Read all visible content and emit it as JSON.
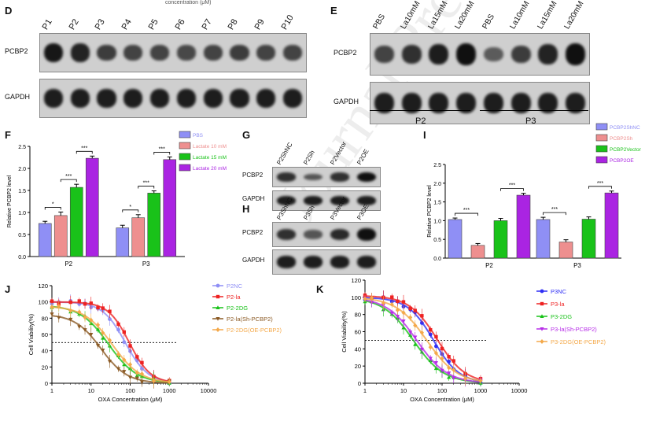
{
  "header_fragment": "concentration (μM)",
  "watermark": "Journal Pre-proof",
  "panels": {
    "D": {
      "letter": "D",
      "lanes": [
        "P1",
        "P2",
        "P3",
        "P4",
        "P5",
        "P6",
        "P7",
        "P8",
        "P9",
        "P10"
      ],
      "rows": [
        "PCBP2",
        "GAPDH"
      ],
      "pcbp2_intensity": [
        0.9,
        0.8,
        0.6,
        0.55,
        0.55,
        0.5,
        0.55,
        0.6,
        0.55,
        0.55
      ]
    },
    "E": {
      "letter": "E",
      "lanes": [
        "PBS",
        "La10mM",
        "La15mM",
        "La20mM",
        "PBS",
        "La10mM",
        "La15mM",
        "La20mM"
      ],
      "rows": [
        "PCBP2",
        "GAPDH"
      ],
      "groups": [
        "P2",
        "P3"
      ],
      "pcbp2_intensity": [
        0.55,
        0.7,
        0.85,
        0.95,
        0.35,
        0.6,
        0.8,
        0.95
      ]
    },
    "G": {
      "letter": "G",
      "lanes": [
        "P2ShNC",
        "P2Sh",
        "P2Vector",
        "P2OE"
      ],
      "rows": [
        "PCBP2",
        "GAPDH"
      ],
      "pcbp2_intensity": [
        0.7,
        0.4,
        0.7,
        0.95
      ]
    },
    "H": {
      "letter": "H",
      "lanes": [
        "P3ShNC",
        "P3Sh",
        "P3Vector",
        "P3OE"
      ],
      "rows": [
        "PCBP2",
        "GAPDH"
      ],
      "pcbp2_intensity": [
        0.7,
        0.4,
        0.75,
        0.95
      ]
    }
  },
  "colors": {
    "blue": "#8f8ff5",
    "pink": "#ee8f8f",
    "green": "#19c219",
    "purple": "#aa24e2",
    "brown": "#8b5a24",
    "orange": "#f4a94a",
    "netblue": "#2f2ff5",
    "red": "#ee2222",
    "magenta": "#b72de8"
  },
  "chart_data": [
    {
      "id": "F",
      "letter": "F",
      "type": "bar",
      "ylabel": "Relative PCBP2 level",
      "ylim": [
        0,
        2.5
      ],
      "yticks": [
        "0.0",
        "0.5",
        "1.0",
        "1.5",
        "2.0",
        "2.5"
      ],
      "categories": [
        "P2",
        "P3"
      ],
      "series": [
        {
          "name": "PBS",
          "values": [
            0.75,
            0.65
          ],
          "errors": [
            0.05,
            0.06
          ]
        },
        {
          "name": "Lactate 10 mM",
          "values": [
            0.93,
            0.88
          ],
          "errors": [
            0.08,
            0.07
          ]
        },
        {
          "name": "Lactate 15 mM",
          "values": [
            1.57,
            1.44
          ],
          "errors": [
            0.07,
            0.05
          ]
        },
        {
          "name": "Lactate 20 mM",
          "values": [
            2.23,
            2.2
          ],
          "errors": [
            0.05,
            0.06
          ]
        }
      ],
      "annotations": [
        "*",
        "***",
        "***",
        "*",
        "***",
        "***"
      ]
    },
    {
      "id": "I",
      "letter": "I",
      "type": "bar",
      "ylabel": "Relative PCBP2 level",
      "ylim": [
        0,
        2.5
      ],
      "yticks": [
        "0.0",
        "0.5",
        "1.0",
        "1.5",
        "2.0",
        "2.5"
      ],
      "categories": [
        "P2",
        "P3"
      ],
      "series": [
        {
          "name": "PCBP2ShNC",
          "values": [
            1.03,
            1.03
          ],
          "errors": [
            0.04,
            0.06
          ]
        },
        {
          "name": "PCBP2Sh",
          "values": [
            0.34,
            0.43
          ],
          "errors": [
            0.05,
            0.06
          ]
        },
        {
          "name": "PCBP2Vector",
          "values": [
            1.0,
            1.04
          ],
          "errors": [
            0.06,
            0.06
          ]
        },
        {
          "name": "PCBP2OE",
          "values": [
            1.68,
            1.74
          ],
          "errors": [
            0.05,
            0.05
          ]
        }
      ],
      "annotations": [
        "***",
        "***",
        "***",
        "***"
      ]
    },
    {
      "id": "J",
      "letter": "J",
      "type": "line",
      "xlabel": "OXA Concentration (μM)",
      "ylabel": "Cell Viability(%)",
      "xscale": "log",
      "xlim": [
        1,
        10000
      ],
      "ylim": [
        0,
        120
      ],
      "xticks": [
        "1",
        "10",
        "100",
        "1000",
        "10000"
      ],
      "yticks": [
        "0",
        "20",
        "40",
        "60",
        "80",
        "100",
        "120"
      ],
      "reference_line": 50,
      "series": [
        {
          "name": "P2NC",
          "ic50": 75,
          "hill": 1.5,
          "top": 100
        },
        {
          "name": "P2-la",
          "ic50": 95,
          "hill": 1.6,
          "top": 100
        },
        {
          "name": "P2-2DG",
          "ic50": 28,
          "hill": 1.2,
          "top": 96
        },
        {
          "name": "P2-la(Sh-PCBP2)",
          "ic50": 18,
          "hill": 1.3,
          "top": 85
        },
        {
          "name": "P2-2DG(OE-PCBP2)",
          "ic50": 35,
          "hill": 1.2,
          "top": 95
        }
      ]
    },
    {
      "id": "K",
      "letter": "K",
      "type": "line",
      "xlabel": "OXA Concentration (μM)",
      "ylabel": "Cell Viability(%)",
      "xscale": "log",
      "xlim": [
        1,
        10000
      ],
      "ylim": [
        0,
        120
      ],
      "xticks": [
        "1",
        "10",
        "100",
        "1000",
        "10000"
      ],
      "yticks": [
        "0",
        "20",
        "40",
        "60",
        "80",
        "100",
        "120"
      ],
      "reference_line": 50,
      "series": [
        {
          "name": "P3NC",
          "ic50": 60,
          "hill": 1.3,
          "top": 100
        },
        {
          "name": "P3-la",
          "ic50": 75,
          "hill": 1.2,
          "top": 102
        },
        {
          "name": "P3-2DG",
          "ic50": 18,
          "hill": 1.1,
          "top": 100
        },
        {
          "name": "P3-la(Sh-PCBP2)",
          "ic50": 22,
          "hill": 1.1,
          "top": 100
        },
        {
          "name": "P3-2DG(OE-PCBP2)",
          "ic50": 40,
          "hill": 1.1,
          "top": 100
        }
      ]
    }
  ]
}
